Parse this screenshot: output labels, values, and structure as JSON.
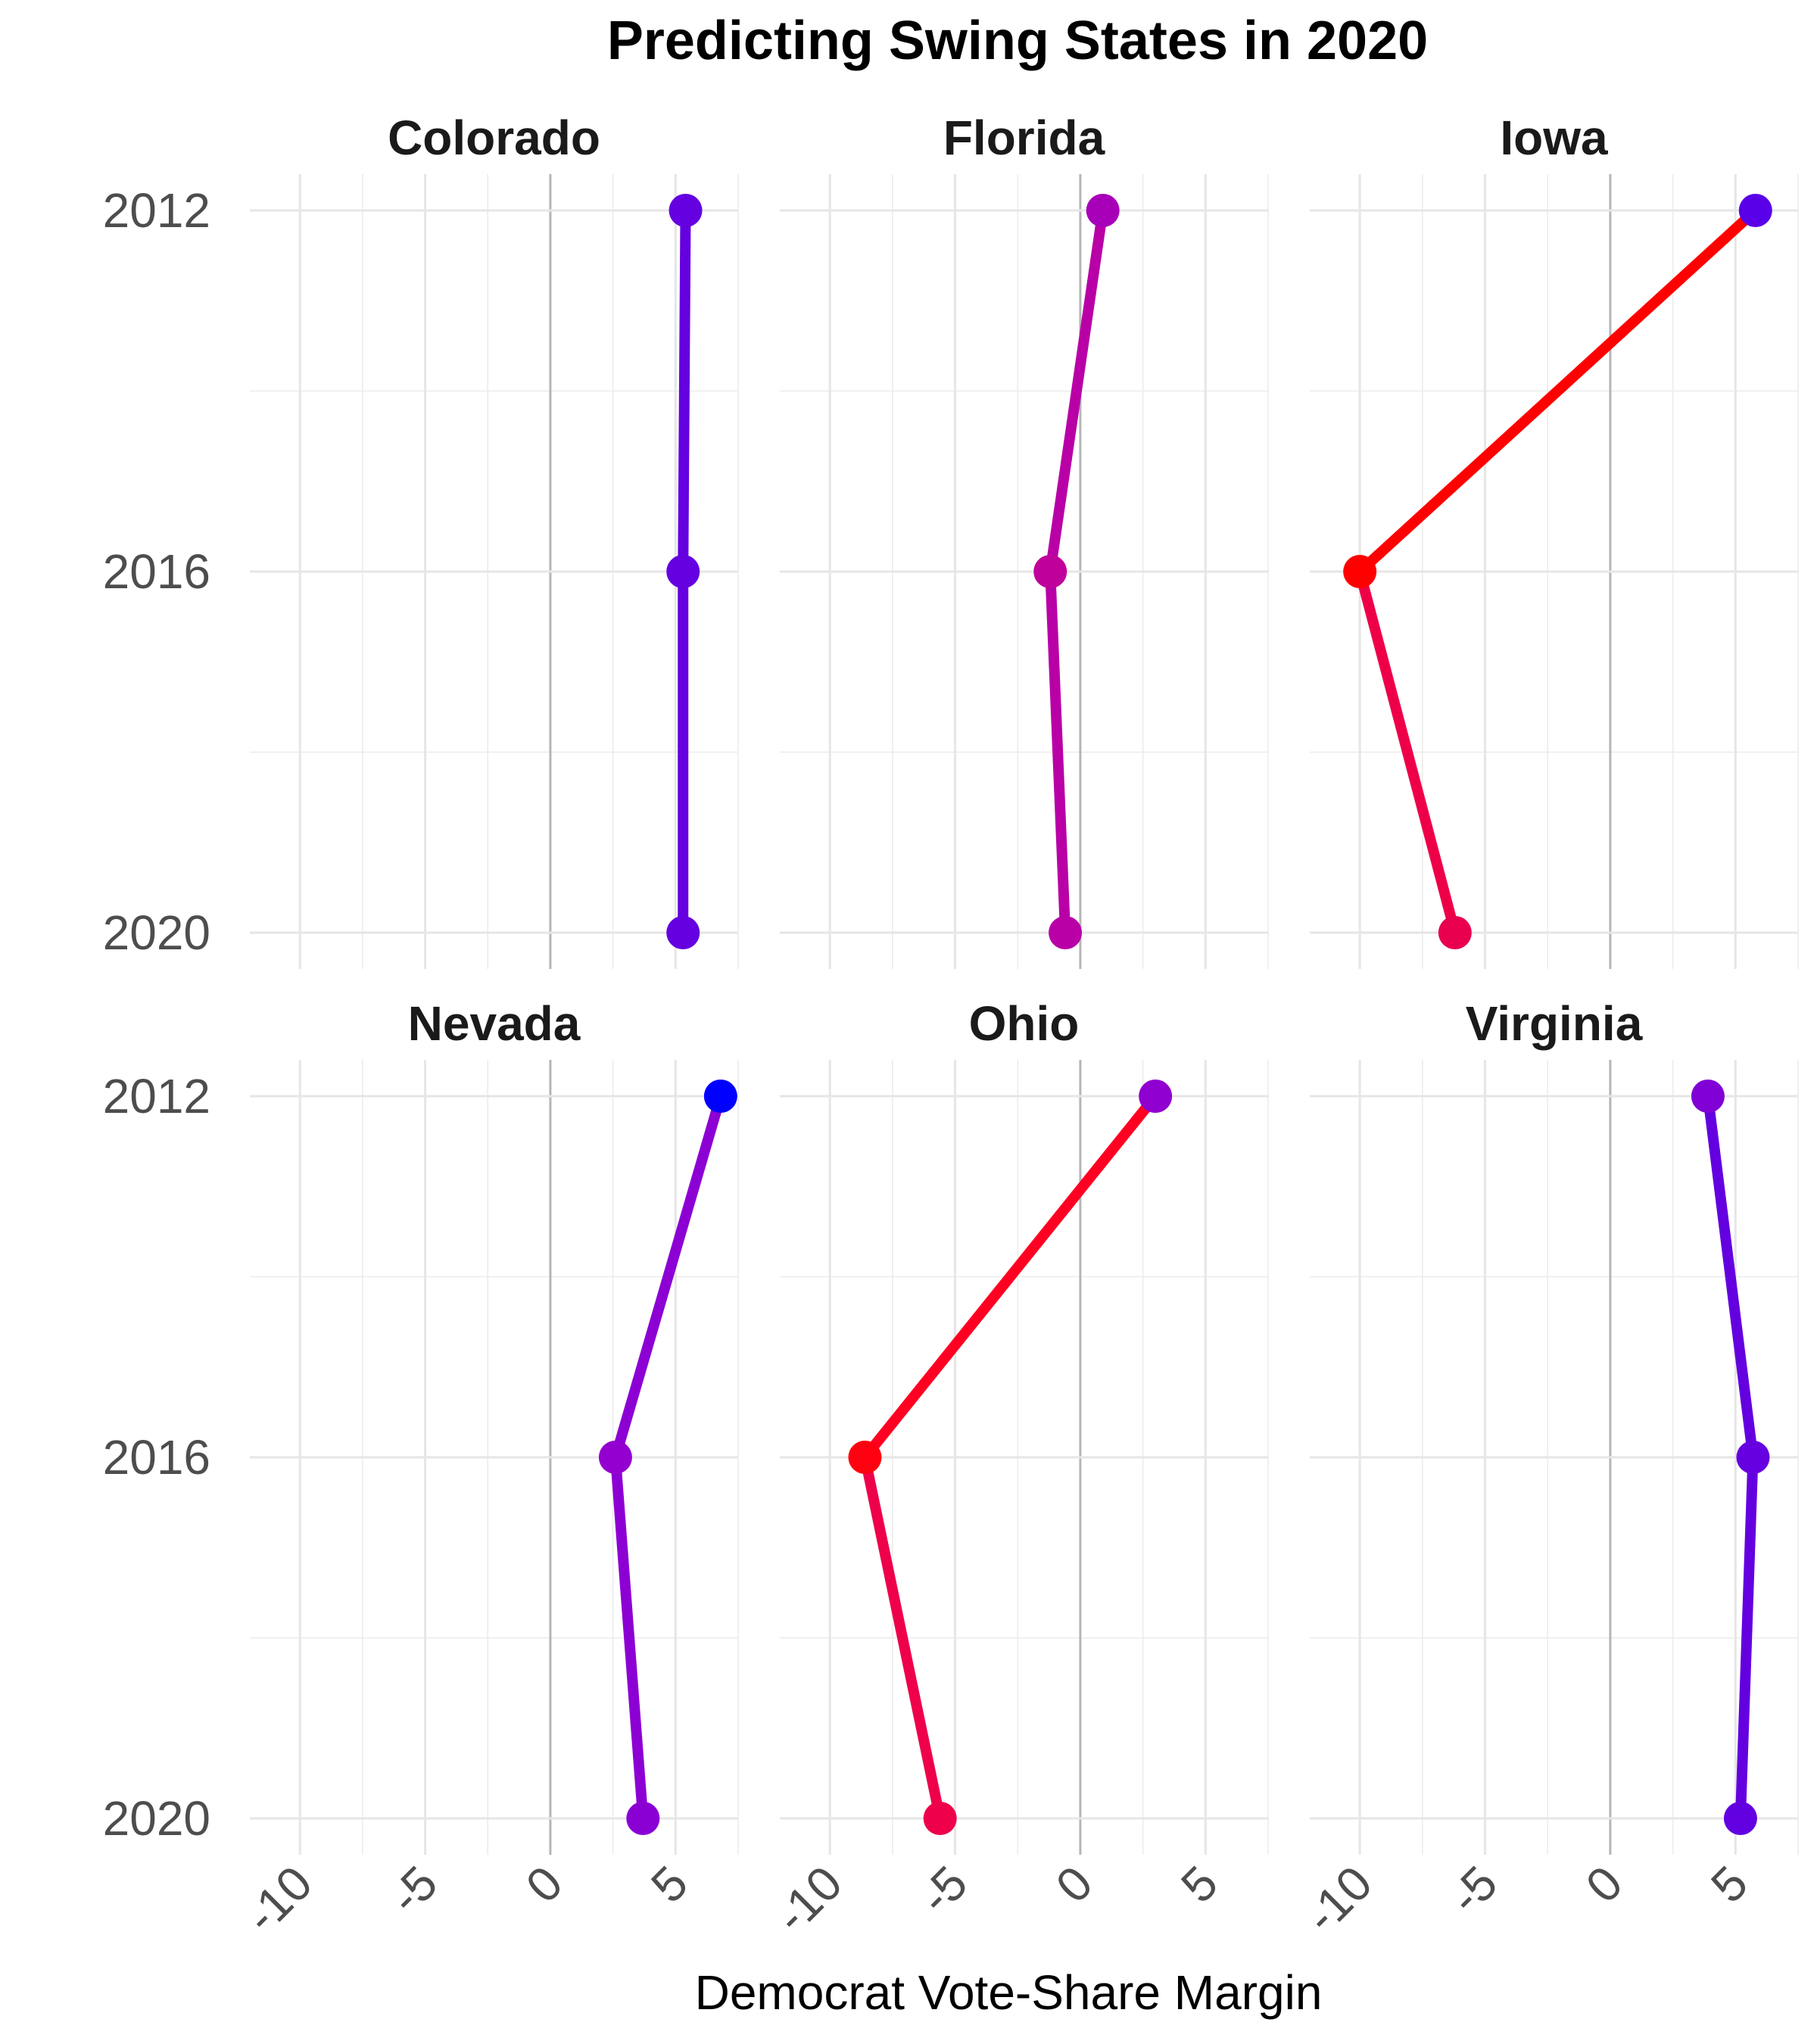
{
  "chart_data": {
    "type": "line",
    "title": "Predicting Swing States in 2020",
    "xlabel": "Democrat Vote-Share Margin",
    "ylabel": "",
    "xlim": [
      -12,
      7.5
    ],
    "x_ticks": [
      -10,
      -5,
      0,
      5
    ],
    "x_tick_labels": [
      "-10",
      "-5",
      "0",
      "5"
    ],
    "y_categories": [
      "2012",
      "2016",
      "2020"
    ],
    "grid": true,
    "legend": "none",
    "facets": [
      {
        "name": "Colorado",
        "values": [
          5.4,
          5.3,
          5.3
        ],
        "point_colors": [
          "#6500e0",
          "#6500e0",
          "#6500e0"
        ],
        "segment_colors": [
          "#6500e0",
          "#6500e0"
        ]
      },
      {
        "name": "Florida",
        "values": [
          0.9,
          -1.2,
          -0.6
        ],
        "point_colors": [
          "#a800b8",
          "#c0009a",
          "#b800a6"
        ],
        "segment_colors": [
          "#b800a6",
          "#b800a6"
        ]
      },
      {
        "name": "Iowa",
        "values": [
          5.8,
          -10.0,
          -6.2
        ],
        "point_colors": [
          "#5a00e8",
          "#ff0000",
          "#e8004e"
        ],
        "segment_colors": [
          "#ff0000",
          "#ee0048"
        ]
      },
      {
        "name": "Nevada",
        "values": [
          6.8,
          2.6,
          3.7
        ],
        "point_colors": [
          "#0000ff",
          "#9400d0",
          "#8a00d4"
        ],
        "segment_colors": [
          "#8c00d4",
          "#8c00d4"
        ]
      },
      {
        "name": "Ohio",
        "values": [
          3.0,
          -8.6,
          -5.6
        ],
        "point_colors": [
          "#9000d0",
          "#ff0010",
          "#ee004a"
        ],
        "segment_colors": [
          "#ff0022",
          "#ee004a"
        ]
      },
      {
        "name": "Virginia",
        "values": [
          3.9,
          5.7,
          5.2
        ],
        "point_colors": [
          "#8000d6",
          "#6600e0",
          "#6200e2"
        ],
        "segment_colors": [
          "#6400e0",
          "#6400e0"
        ]
      }
    ]
  }
}
